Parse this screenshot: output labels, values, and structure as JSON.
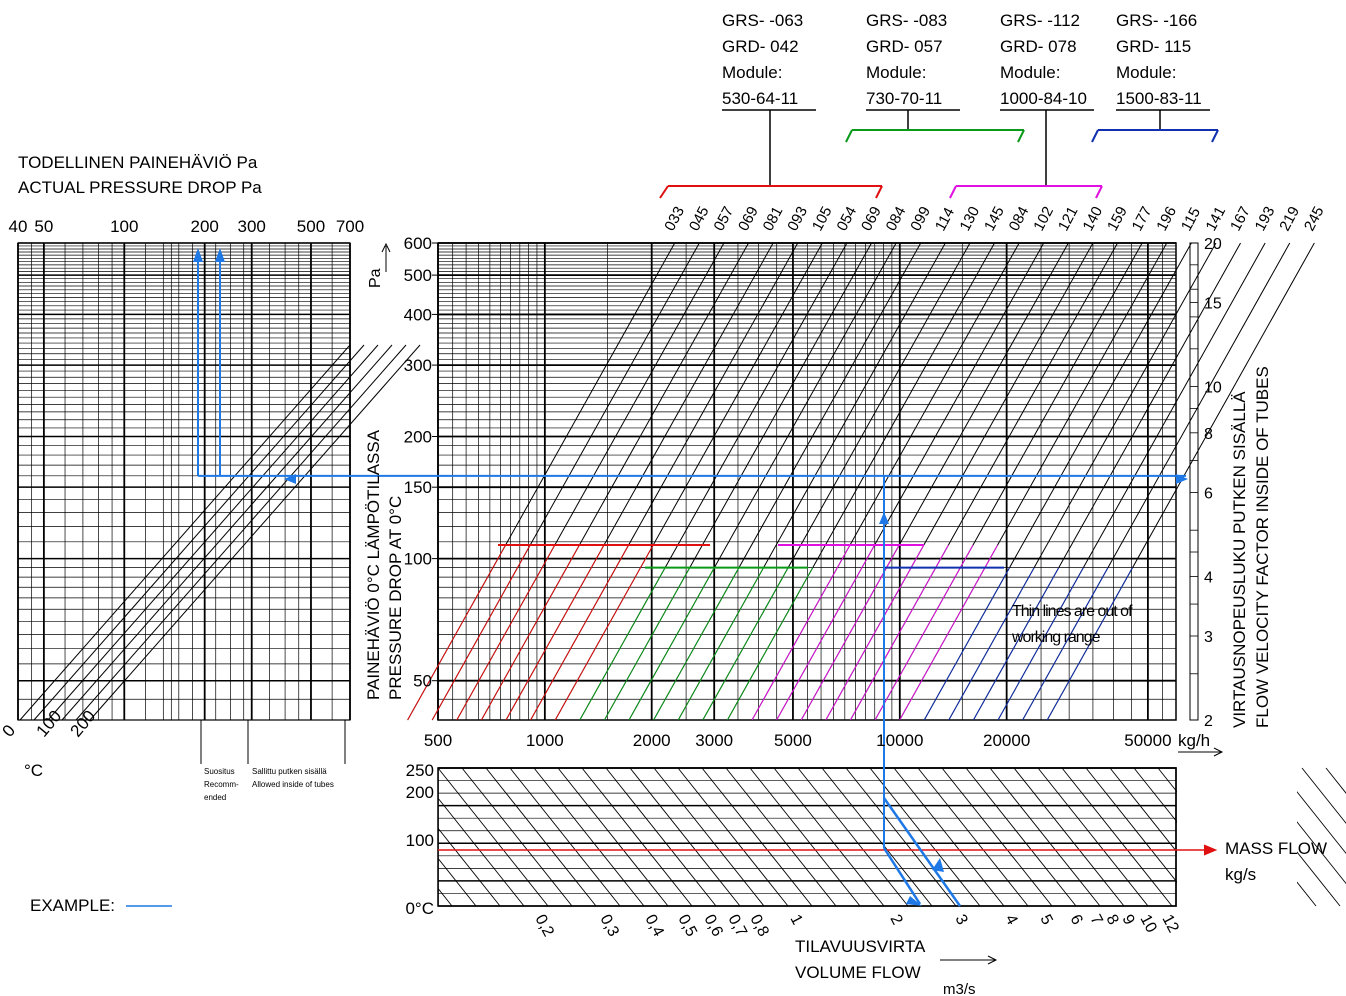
{
  "chart_data": {
    "type": "line",
    "actual_pressure_panel": {
      "title_fi": "TODELLINEN PAINEHÄVIÖ  Pa",
      "title_en": "ACTUAL PRESSURE DROP  Pa",
      "x_ticks": [
        "40",
        "50",
        "100",
        "200",
        "300",
        "500",
        "700"
      ],
      "temperature_labels": [
        "0",
        "100",
        "200"
      ],
      "temperature_unit": "°C",
      "zone_recommended": [
        "Suositus",
        "Recomm-",
        "ended"
      ],
      "zone_allowed": [
        "Sallittu putken sisällä",
        "Allowed inside of tubes"
      ],
      "example_label": "EXAMPLE:"
    },
    "pressure_drop_panel": {
      "y_axis_fi": "PAINEHÄVIÖ 0°C LÄMPÖTILASSA",
      "y_axis_en": "PRESSURE DROP AT 0°C",
      "y_unit": "Pa",
      "y_scale": "log",
      "y_ticks": [
        "600",
        "500",
        "400",
        "300",
        "200",
        "150",
        "100",
        "50"
      ],
      "x_unit": "kg/h",
      "x_scale": "log",
      "x_ticks": [
        "500",
        "1000",
        "2000",
        "3000",
        "5000",
        "10000",
        "20000",
        "50000"
      ],
      "right_axis_fi": "VIRTAUSNOPEUSLUKU PUTKEN SISÄLLÄ",
      "right_axis_en": "FLOW VELOCITY FACTOR INSIDE OF TUBES",
      "right_ticks": [
        "20",
        "15",
        "10",
        "8",
        "6",
        "4",
        "3",
        "2"
      ],
      "note": [
        "Thin lines are out of",
        "working range"
      ]
    },
    "module_groups": [
      {
        "lines": [
          "GRS-  -063",
          "GRD-  042",
          "Module:",
          "530-64-11"
        ],
        "color": "#e01010",
        "curves": [
          "033",
          "045",
          "057",
          "069",
          "081",
          "093",
          "105"
        ]
      },
      {
        "lines": [
          "GRS-  -083",
          "GRD-  057",
          "Module:",
          "730-70-11"
        ],
        "color": "#0a9a1a",
        "curves": [
          "054",
          "069",
          "084",
          "099",
          "114",
          "130",
          "145"
        ]
      },
      {
        "lines": [
          "GRS-  -112",
          "GRD-  078",
          "Module:",
          "1000-84-10"
        ],
        "color": "#e010e0",
        "curves": [
          "084",
          "102",
          "121",
          "140",
          "159",
          "177",
          "196"
        ]
      },
      {
        "lines": [
          "GRS-  -166",
          "GRD-  115",
          "Module:",
          "1500-83-11"
        ],
        "color": "#1030b0",
        "curves": [
          "115",
          "141",
          "167",
          "193",
          "219",
          "245"
        ]
      }
    ],
    "volume_flow_panel": {
      "y_ticks": [
        "250",
        "200",
        "100",
        "0°C"
      ],
      "x_ticks": [
        "0,2",
        "0,3",
        "0,4",
        "0,5",
        "0,6",
        "0,7",
        "0,8",
        "1",
        "2",
        "3",
        "4",
        "5",
        "6",
        "7",
        "8",
        "9",
        "10",
        "12"
      ],
      "x_label_fi": "TILAVUUSVIRTA",
      "x_label_en": "VOLUME FLOW",
      "x_unit": "m3/s",
      "mass_flow_label": "MASS FLOW",
      "mass_flow_unit": "kg/s"
    },
    "example": {
      "color": "#1e78e6",
      "pressure_drop_pa": 160,
      "mass_flow_kgh": 9200
    }
  }
}
